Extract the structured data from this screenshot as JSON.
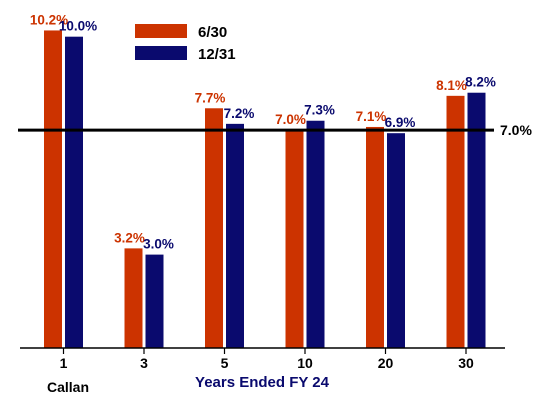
{
  "chart_data": {
    "type": "bar",
    "categories": [
      "1",
      "3",
      "5",
      "10",
      "20",
      "30"
    ],
    "series": [
      {
        "name": "6/30",
        "values": [
          10.2,
          3.2,
          7.7,
          7.0,
          7.1,
          8.1
        ],
        "labels": [
          "10.2%",
          "3.2%",
          "7.7%",
          "7.0%",
          "7.1%",
          "8.1%"
        ]
      },
      {
        "name": "12/31",
        "values": [
          10.0,
          3.0,
          7.2,
          7.3,
          6.9,
          8.2
        ],
        "labels": [
          "10.0%",
          "3.0%",
          "7.2%",
          "7.3%",
          "6.9%",
          "8.2%"
        ]
      }
    ],
    "reference_line": {
      "value": 7.0,
      "label": "7.0%"
    },
    "xlabel": "Years Ended FY 24",
    "ylabel": "",
    "ylim": [
      0,
      10.6
    ],
    "grid": false,
    "legend_position": "top-center",
    "source_note": "Callan"
  },
  "colors": {
    "series_1": "#cc3300",
    "series_2": "#0a0a6e",
    "reference_line": "#000000",
    "axis": "#000000"
  }
}
